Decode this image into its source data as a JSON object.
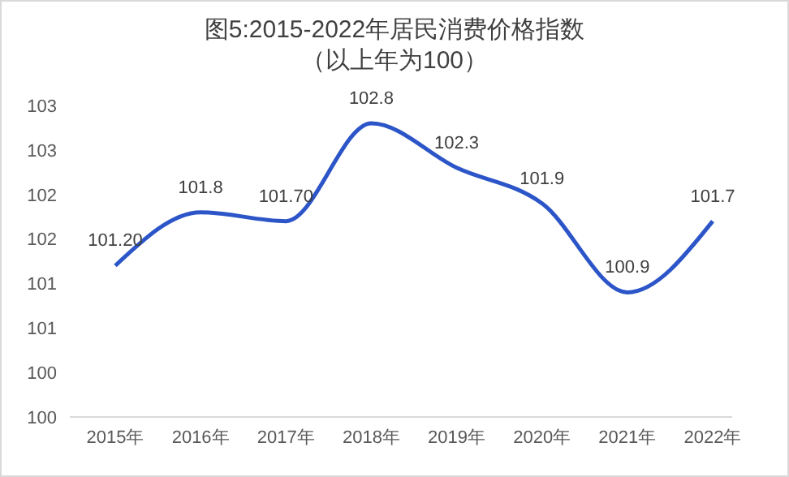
{
  "chart_data": {
    "type": "line",
    "title": "图5:2015-2022年居民消费价格指数",
    "subtitle": "（以上年为100）",
    "categories": [
      "2015年",
      "2016年",
      "2017年",
      "2018年",
      "2019年",
      "2020年",
      "2021年",
      "2022年"
    ],
    "series": [
      {
        "color": "#2c55c8",
        "values": [
          101.2,
          101.8,
          101.7,
          102.8,
          102.3,
          101.9,
          100.9,
          101.7
        ],
        "value_labels": [
          "101.20",
          "101.8",
          "101.70",
          "102.8",
          "102.3",
          "101.9",
          "100.9",
          "101.7"
        ]
      }
    ],
    "ylim": [
      99.5,
      103
    ],
    "yticks": [
      {
        "value": 99.5,
        "label": "100"
      },
      {
        "value": 100,
        "label": "100"
      },
      {
        "value": 100.5,
        "label": "101"
      },
      {
        "value": 101,
        "label": "101"
      },
      {
        "value": 101.5,
        "label": "102"
      },
      {
        "value": 102,
        "label": "102"
      },
      {
        "value": 102.5,
        "label": "103"
      },
      {
        "value": 103,
        "label": "103"
      }
    ],
    "grid": false,
    "legend": false,
    "marker": "none",
    "line_style": "solid"
  }
}
